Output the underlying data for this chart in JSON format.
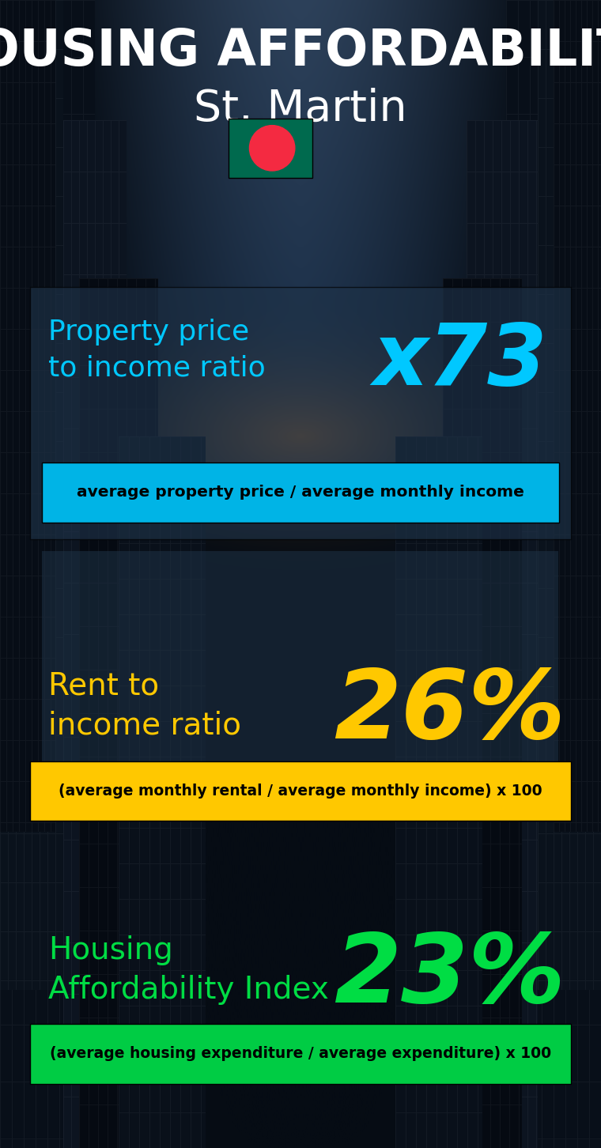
{
  "title_line1": "HOUSING AFFORDABILITY",
  "title_line2": "St. Martin",
  "title_line1_color": "#ffffff",
  "title_line2_color": "#ffffff",
  "bg_color": "#060c14",
  "section1_label": "Property price\nto income ratio",
  "section1_value": "x73",
  "section1_label_color": "#00c8ff",
  "section1_value_color": "#00c8ff",
  "section1_banner_text": "average property price / average monthly income",
  "section1_banner_bg": "#00b4e6",
  "section1_banner_text_color": "#000000",
  "section2_label": "Rent to\nincome ratio",
  "section2_value": "26%",
  "section2_label_color": "#ffc800",
  "section2_value_color": "#ffc800",
  "section2_banner_text": "(average monthly rental / average monthly income) x 100",
  "section2_banner_bg": "#ffc800",
  "section2_banner_text_color": "#000000",
  "section3_label": "Housing\nAffordability Index",
  "section3_value": "23%",
  "section3_label_color": "#00dd44",
  "section3_value_color": "#00dd44",
  "section3_banner_text": "(average housing expenditure / average expenditure) x 100",
  "section3_banner_bg": "#00cc44",
  "section3_banner_text_color": "#000000",
  "flag_green": "#006a4e",
  "flag_red": "#f42a41"
}
